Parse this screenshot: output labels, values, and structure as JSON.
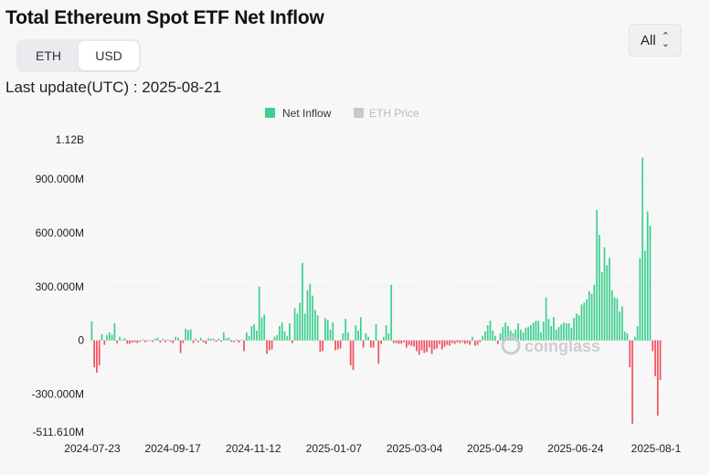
{
  "page": {
    "title": "Total Ethereum Spot ETF Net Inflow",
    "toggle": {
      "eth_label": "ETH",
      "usd_label": "USD",
      "active": "USD"
    },
    "range_select": {
      "value": "All"
    },
    "last_update": "Last update(UTC) : 2025-08-21",
    "watermark": "coinglass"
  },
  "colors": {
    "positive": "#3ecf8e",
    "negative": "#f0525e",
    "eth_price_legend": "#c8c8c8"
  },
  "chart_data": {
    "type": "bar",
    "legend": [
      {
        "name": "Net Inflow",
        "active": true,
        "color": "#3ecf8e"
      },
      {
        "name": "ETH Price",
        "active": false,
        "color": "#c8c8c8"
      }
    ],
    "legend_position": "top-center",
    "grid": true,
    "y_ticks": [
      {
        "value": 1120000000,
        "label": "1.12B"
      },
      {
        "value": 900000000,
        "label": "900.000M"
      },
      {
        "value": 600000000,
        "label": "600.000M"
      },
      {
        "value": 300000000,
        "label": "300.000M"
      },
      {
        "value": 0,
        "label": "0"
      },
      {
        "value": -300000000,
        "label": "-300.000M"
      },
      {
        "value": -511610000,
        "label": "-511.610M"
      }
    ],
    "ylim": [
      -511610000,
      1120000000
    ],
    "x_tick_labels": [
      "2024-07-23",
      "2024-09-17",
      "2024-11-12",
      "2025-01-07",
      "2025-03-04",
      "2025-04-29",
      "2025-06-24",
      "2025-08-1"
    ],
    "unit": "USD",
    "values": [
      107000000,
      -150000000,
      -180000000,
      -140000000,
      35000000,
      -25000000,
      30000000,
      45000000,
      32000000,
      95000000,
      -15000000,
      20000000,
      5000000,
      12000000,
      -18000000,
      -20000000,
      -12000000,
      -10000000,
      -15000000,
      -8000000,
      5000000,
      -10000000,
      -5000000,
      3000000,
      -8000000,
      10000000,
      15000000,
      -12000000,
      8000000,
      -10000000,
      5000000,
      -8000000,
      -15000000,
      20000000,
      15000000,
      -70000000,
      -15000000,
      65000000,
      58000000,
      62000000,
      -15000000,
      10000000,
      -10000000,
      15000000,
      -10000000,
      -20000000,
      12000000,
      9000000,
      10000000,
      -8000000,
      10000000,
      -7000000,
      45000000,
      12000000,
      15000000,
      -8000000,
      -10000000,
      6000000,
      -12000000,
      4000000,
      -60000000,
      45000000,
      25000000,
      80000000,
      90000000,
      55000000,
      300000000,
      128000000,
      145000000,
      -75000000,
      -55000000,
      -50000000,
      20000000,
      30000000,
      80000000,
      100000000,
      50000000,
      25000000,
      95000000,
      -15000000,
      180000000,
      150000000,
      210000000,
      432000000,
      150000000,
      280000000,
      315000000,
      250000000,
      170000000,
      140000000,
      -65000000,
      -60000000,
      125000000,
      115000000,
      60000000,
      100000000,
      -55000000,
      -50000000,
      -45000000,
      40000000,
      120000000,
      45000000,
      -140000000,
      -165000000,
      85000000,
      55000000,
      130000000,
      -40000000,
      40000000,
      20000000,
      -40000000,
      -40000000,
      90000000,
      -130000000,
      -20000000,
      20000000,
      85000000,
      40000000,
      310000000,
      -15000000,
      -15000000,
      -20000000,
      -18000000,
      -10000000,
      -40000000,
      -25000000,
      -30000000,
      -35000000,
      -60000000,
      -80000000,
      -55000000,
      -70000000,
      -65000000,
      -40000000,
      -75000000,
      -50000000,
      -45000000,
      -20000000,
      -50000000,
      -35000000,
      -25000000,
      -30000000,
      -15000000,
      -20000000,
      -10000000,
      -15000000,
      -10000000,
      -20000000,
      -15000000,
      -25000000,
      20000000,
      -30000000,
      -25000000,
      -10000000,
      25000000,
      50000000,
      85000000,
      110000000,
      55000000,
      25000000,
      -20000000,
      40000000,
      75000000,
      100000000,
      80000000,
      55000000,
      40000000,
      60000000,
      95000000,
      60000000,
      45000000,
      70000000,
      75000000,
      85000000,
      100000000,
      110000000,
      110000000,
      45000000,
      105000000,
      240000000,
      120000000,
      80000000,
      130000000,
      60000000,
      75000000,
      90000000,
      100000000,
      95000000,
      95000000,
      70000000,
      125000000,
      150000000,
      140000000,
      200000000,
      210000000,
      230000000,
      275000000,
      260000000,
      310000000,
      728000000,
      590000000,
      380000000,
      520000000,
      420000000,
      460000000,
      280000000,
      240000000,
      235000000,
      160000000,
      190000000,
      50000000,
      40000000,
      -150000000,
      -465000000,
      20000000,
      80000000,
      460000000,
      1020000000,
      500000000,
      720000000,
      640000000,
      -60000000,
      -200000000,
      -420000000,
      -220000000
    ]
  }
}
